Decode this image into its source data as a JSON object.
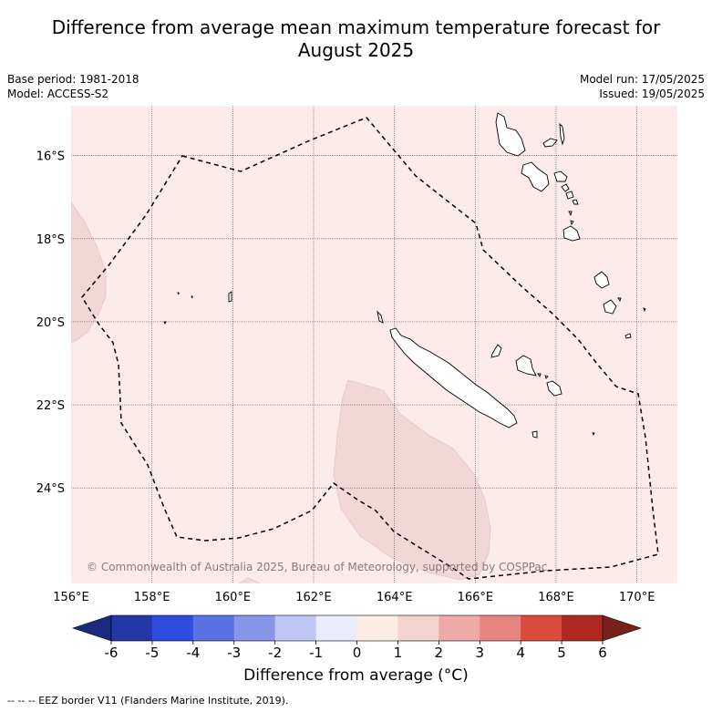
{
  "title_line1": "Difference from average mean maximum temperature forecast for",
  "title_line2": "August 2025",
  "base_period": "Base period: 1981-2018",
  "model": "Model: ACCESS-S2",
  "model_run": "Model run: 17/05/2025",
  "issued": "Issued: 19/05/2025",
  "map": {
    "lon_range": [
      156,
      171
    ],
    "lat_range": [
      -26.3,
      -14.8
    ],
    "lon_ticks": [
      "156°E",
      "158°E",
      "160°E",
      "162°E",
      "164°E",
      "166°E",
      "168°E",
      "170°E"
    ],
    "lat_ticks": [
      "16°S",
      "18°S",
      "20°S",
      "22°S",
      "24°S"
    ],
    "background_category": "0 to 1",
    "background_color": "#fcebea",
    "warm_patch_category": "1 to 2",
    "warm_patch_color": "#f3d7d6",
    "copyright": "© Commonwealth of Australia 2025, Bureau of Meteorology, supported by COSPPac"
  },
  "colorbar": {
    "labels": [
      "-6",
      "-5",
      "-4",
      "-3",
      "-2",
      "-1",
      "0",
      "1",
      "2",
      "3",
      "4",
      "5",
      "6"
    ],
    "colors": [
      "#2437a6",
      "#2e4ce0",
      "#5a72e6",
      "#8896ea",
      "#bfc6f4",
      "#e8ecfb",
      "#fdece6",
      "#f3d2d0",
      "#eeaaa6",
      "#e7847f",
      "#db4a3f",
      "#ad2922"
    ],
    "under_color": "#1a2a80",
    "over_color": "#78201b",
    "label": "Difference from average (°C)"
  },
  "footer": "--  --  -- EEZ border V11 (Flanders Marine Institute, 2019)."
}
